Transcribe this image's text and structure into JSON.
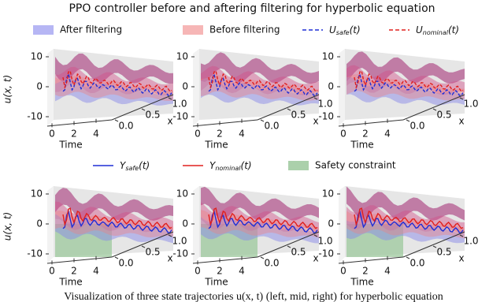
{
  "chart_data": {
    "type": "surface3d",
    "title": "PPO controller before and aftering filtering for hyperbolic equation",
    "legend_top": [
      {
        "name": "After filtering",
        "color": "#a9a9f2"
      },
      {
        "name": "Before filtering",
        "color": "#f4a9a9"
      },
      {
        "symbol": "U",
        "subscript": "safe",
        "arg": "(t)",
        "color": "#1f2fd6"
      },
      {
        "symbol": "U",
        "subscript": "nominal",
        "arg": "(t)",
        "color": "#e0201e"
      }
    ],
    "legend_bottom": [
      {
        "symbol": "Y",
        "subscript": "safe",
        "arg": "(t)",
        "color": "#1f2fd6"
      },
      {
        "symbol": "Y",
        "subscript": "nominal",
        "arg": "(t)",
        "color": "#e0201e"
      },
      {
        "name": "Safety constraint",
        "color": "#9cc89c"
      }
    ],
    "zlabel": "u(x, t)",
    "xlabel": "Time",
    "ylabel": "x",
    "zticks": [
      -10,
      0,
      10
    ],
    "xticks": [
      0,
      2,
      4
    ],
    "yticks": [
      {
        "value": 0,
        "label": "0.0"
      },
      {
        "value": 0.5,
        "label": "0.5"
      },
      {
        "value": 1,
        "label": "1.0"
      }
    ],
    "caption": "Visualization of three state trajectories u(x, t) (left, mid, right) for hyperbolic equation"
  }
}
